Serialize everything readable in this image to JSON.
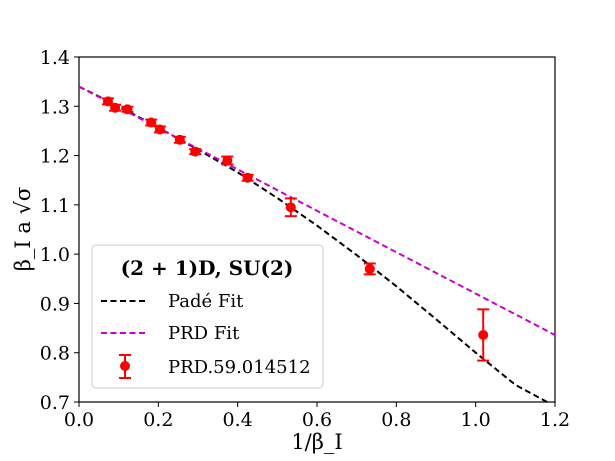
{
  "chart_data": {
    "type": "scatter",
    "title": "",
    "xlabel": "1/β_I",
    "ylabel": "β_I a √σ",
    "xlim": [
      0.0,
      1.2
    ],
    "ylim": [
      0.7,
      1.4
    ],
    "x_ticks": [
      0.0,
      0.2,
      0.4,
      0.6,
      0.8,
      1.0,
      1.2
    ],
    "y_ticks": [
      0.7,
      0.8,
      0.9,
      1.0,
      1.1,
      1.2,
      1.3,
      1.4
    ],
    "x_tick_labels": [
      "0.0",
      "0.2",
      "0.4",
      "0.6",
      "0.8",
      "1.0",
      "1.2"
    ],
    "y_tick_labels": [
      "0.7",
      "0.8",
      "0.9",
      "1.0",
      "1.1",
      "1.2",
      "1.3",
      "1.4"
    ],
    "grid": false,
    "legend": {
      "position": "lower-left",
      "title": "(2 + 1)D, SU(2)",
      "entries": [
        "Padé Fit",
        "PRD Fit",
        "PRD.59.014512"
      ]
    },
    "series": [
      {
        "name": "PRD.59.014512",
        "kind": "errorbar",
        "color": "#ff0000",
        "points": [
          {
            "x": 0.073,
            "y": 1.31,
            "err": 0.006
          },
          {
            "x": 0.091,
            "y": 1.297,
            "err": 0.006
          },
          {
            "x": 0.122,
            "y": 1.294,
            "err": 0.005
          },
          {
            "x": 0.182,
            "y": 1.267,
            "err": 0.006
          },
          {
            "x": 0.204,
            "y": 1.253,
            "err": 0.006
          },
          {
            "x": 0.254,
            "y": 1.232,
            "err": 0.006
          },
          {
            "x": 0.293,
            "y": 1.208,
            "err": 0.005
          },
          {
            "x": 0.374,
            "y": 1.19,
            "err": 0.008
          },
          {
            "x": 0.425,
            "y": 1.155,
            "err": 0.006
          },
          {
            "x": 0.534,
            "y": 1.095,
            "err": 0.018
          },
          {
            "x": 0.733,
            "y": 0.97,
            "err": 0.011
          },
          {
            "x": 1.019,
            "y": 0.836,
            "err": 0.052
          }
        ]
      },
      {
        "name": "Padé Fit",
        "kind": "line",
        "color": "#000000",
        "dash": "dashed",
        "x": [
          0.0,
          0.1,
          0.2,
          0.3,
          0.4,
          0.5,
          0.6,
          0.7,
          0.8,
          0.9,
          1.0,
          1.1,
          1.18
        ],
        "y": [
          1.34,
          1.3,
          1.257,
          1.212,
          1.166,
          1.114,
          1.058,
          0.998,
          0.935,
          0.868,
          0.8,
          0.735,
          0.7
        ]
      },
      {
        "name": "PRD Fit",
        "kind": "line",
        "color": "#cc00cc",
        "dash": "dashed",
        "x": [
          0.0,
          0.2,
          0.4,
          0.6,
          0.8,
          1.0,
          1.2
        ],
        "y": [
          1.34,
          1.256,
          1.172,
          1.088,
          1.004,
          0.92,
          0.836
        ]
      }
    ]
  }
}
